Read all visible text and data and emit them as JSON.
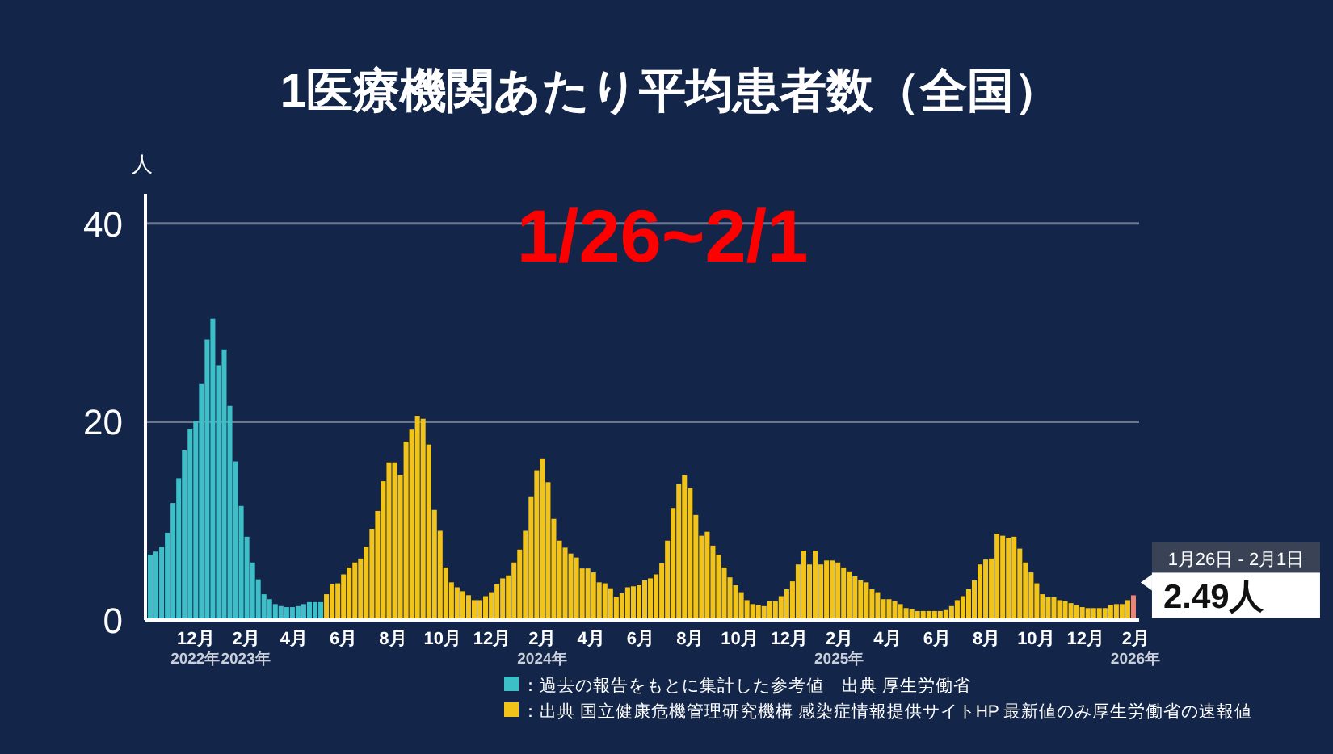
{
  "chart_data": {
    "type": "bar",
    "title": "1医療機関あたり平均患者数（全国）",
    "ylabel": "人",
    "series": [
      {
        "name": "：過去の報告をもとに集計した参考値　出典 厚生労働省",
        "color": "#3dbfc8",
        "x": [
          "2022-10-03",
          "2022-10-10",
          "2022-10-17",
          "2022-10-24",
          "2022-10-31",
          "2022-11-07",
          "2022-11-14",
          "2022-11-21",
          "2022-11-28",
          "2022-12-05",
          "2022-12-12",
          "2022-12-19",
          "2022-12-26",
          "2023-01-02",
          "2023-01-09",
          "2023-01-16",
          "2023-01-23",
          "2023-01-30",
          "2023-02-06",
          "2023-02-13",
          "2023-02-20",
          "2023-02-27",
          "2023-03-06",
          "2023-03-13",
          "2023-03-20",
          "2023-03-27",
          "2023-04-03",
          "2023-04-10",
          "2023-04-17",
          "2023-04-24",
          "2023-05-01"
        ],
        "values": [
          6.6,
          6.9,
          7.4,
          8.8,
          11.8,
          14.3,
          17.1,
          19.3,
          20.1,
          23.8,
          28.3,
          30.4,
          25.7,
          27.3,
          21.6,
          16.0,
          11.5,
          8.4,
          5.8,
          4.1,
          2.6,
          2.1,
          1.6,
          1.4,
          1.3,
          1.3,
          1.4,
          1.6,
          1.8,
          1.8,
          1.8
        ]
      },
      {
        "name": "：出典 国立健康危機管理研究機構 感染症情報提供サイトHP 最新値のみ厚生労働省の速報値",
        "color": "#f2c419",
        "x": [
          "2023-05-08",
          "2023-05-15",
          "2023-05-22",
          "2023-05-29",
          "2023-06-05",
          "2023-06-12",
          "2023-06-19",
          "2023-06-26",
          "2023-07-03",
          "2023-07-10",
          "2023-07-17",
          "2023-07-24",
          "2023-07-31",
          "2023-08-07",
          "2023-08-14",
          "2023-08-21",
          "2023-08-28",
          "2023-09-04",
          "2023-09-11",
          "2023-09-18",
          "2023-09-25",
          "2023-10-02",
          "2023-10-09",
          "2023-10-16",
          "2023-10-23",
          "2023-10-30",
          "2023-11-06",
          "2023-11-13",
          "2023-11-20",
          "2023-11-27",
          "2023-12-04",
          "2023-12-11",
          "2023-12-18",
          "2023-12-25",
          "2024-01-01",
          "2024-01-08",
          "2024-01-15",
          "2024-01-22",
          "2024-01-29",
          "2024-02-05",
          "2024-02-12",
          "2024-02-19",
          "2024-02-26",
          "2024-03-04",
          "2024-03-11",
          "2024-03-18",
          "2024-03-25",
          "2024-04-01",
          "2024-04-08",
          "2024-04-15",
          "2024-04-22",
          "2024-04-29",
          "2024-05-06",
          "2024-05-13",
          "2024-05-20",
          "2024-05-27",
          "2024-06-03",
          "2024-06-10",
          "2024-06-17",
          "2024-06-24",
          "2024-07-01",
          "2024-07-08",
          "2024-07-15",
          "2024-07-22",
          "2024-07-29",
          "2024-08-05",
          "2024-08-12",
          "2024-08-19",
          "2024-08-26",
          "2024-09-02",
          "2024-09-09",
          "2024-09-16",
          "2024-09-23",
          "2024-09-30",
          "2024-10-07",
          "2024-10-14",
          "2024-10-21",
          "2024-10-28",
          "2024-11-04",
          "2024-11-11",
          "2024-11-18",
          "2024-11-25",
          "2024-12-02",
          "2024-12-09",
          "2024-12-16",
          "2024-12-23",
          "2024-12-30",
          "2025-01-06",
          "2025-01-13",
          "2025-01-20",
          "2025-01-27",
          "2025-02-03",
          "2025-02-10",
          "2025-02-17",
          "2025-02-24",
          "2025-03-03",
          "2025-03-10",
          "2025-03-17",
          "2025-03-24",
          "2025-03-31",
          "2025-04-07",
          "2025-04-14",
          "2025-04-21",
          "2025-04-28",
          "2025-05-05",
          "2025-05-12",
          "2025-05-19",
          "2025-05-26",
          "2025-06-02",
          "2025-06-09",
          "2025-06-16",
          "2025-06-23",
          "2025-06-30",
          "2025-07-07",
          "2025-07-14",
          "2025-07-21",
          "2025-07-28",
          "2025-08-04",
          "2025-08-11",
          "2025-08-18",
          "2025-08-25",
          "2025-09-01",
          "2025-09-08",
          "2025-09-15",
          "2025-09-22",
          "2025-09-29",
          "2025-10-06",
          "2025-10-13",
          "2025-10-20",
          "2025-10-27",
          "2025-11-03",
          "2025-11-10",
          "2025-11-17",
          "2025-11-24",
          "2025-12-01",
          "2025-12-08",
          "2025-12-15",
          "2025-12-22",
          "2025-12-29",
          "2026-01-05",
          "2026-01-12",
          "2026-01-19"
        ],
        "values": [
          2.6,
          3.6,
          3.7,
          4.6,
          5.3,
          5.8,
          6.2,
          7.4,
          9.2,
          11.0,
          14.0,
          15.9,
          15.9,
          14.6,
          18.0,
          19.2,
          20.6,
          20.3,
          17.7,
          11.1,
          9.0,
          5.3,
          3.8,
          3.3,
          2.9,
          2.5,
          2.0,
          2.0,
          2.4,
          2.8,
          3.6,
          4.2,
          4.5,
          5.8,
          7.1,
          9.0,
          12.4,
          15.1,
          16.3,
          13.9,
          10.2,
          8.0,
          7.3,
          6.7,
          6.3,
          5.2,
          5.2,
          4.8,
          3.8,
          3.7,
          3.2,
          2.3,
          2.7,
          3.3,
          3.4,
          3.5,
          4.0,
          4.2,
          4.6,
          5.7,
          8.0,
          11.3,
          13.7,
          14.6,
          13.3,
          10.6,
          8.5,
          8.9,
          7.5,
          6.6,
          5.3,
          4.3,
          3.5,
          2.8,
          2.0,
          1.6,
          1.5,
          1.4,
          1.9,
          1.9,
          2.4,
          3.1,
          3.9,
          5.6,
          7.0,
          5.6,
          7.0,
          5.6,
          6.0,
          6.0,
          5.8,
          5.3,
          4.9,
          4.4,
          4.0,
          3.8,
          3.1,
          2.8,
          2.1,
          2.1,
          1.9,
          1.6,
          1.2,
          1.1,
          0.9,
          0.9,
          0.9,
          0.9,
          0.9,
          1.0,
          1.4,
          2.0,
          2.4,
          3.1,
          4.0,
          5.6,
          6.1,
          6.2,
          8.7,
          8.5,
          8.3,
          8.4,
          7.2,
          5.8,
          4.8,
          3.7,
          2.6,
          2.3,
          2.3,
          2.0,
          1.9,
          1.7,
          1.5,
          1.3,
          1.2,
          1.2,
          1.2,
          1.2,
          1.5,
          1.6,
          1.6,
          2.0
        ]
      },
      {
        "color": "#e8857d",
        "x": [
          "2026-01-26"
        ],
        "values": [
          2.49
        ]
      }
    ],
    "xlim": [
      "2022-09-30",
      "2026-02-05"
    ],
    "xticks": [
      {
        "value": "2022-12-01",
        "label": "12月\n2022年"
      },
      {
        "value": "2023-02-01",
        "label": "2月\n2023年"
      },
      {
        "value": "2023-04-01",
        "label": "4月"
      },
      {
        "value": "2023-06-01",
        "label": "6月"
      },
      {
        "value": "2023-08-01",
        "label": "8月"
      },
      {
        "value": "2023-10-01",
        "label": "10月"
      },
      {
        "value": "2023-12-01",
        "label": "12月"
      },
      {
        "value": "2024-02-01",
        "label": "2月\n2024年"
      },
      {
        "value": "2024-04-01",
        "label": "4月"
      },
      {
        "value": "2024-06-01",
        "label": "6月"
      },
      {
        "value": "2024-08-01",
        "label": "8月"
      },
      {
        "value": "2024-10-01",
        "label": "10月"
      },
      {
        "value": "2024-12-01",
        "label": "12月"
      },
      {
        "value": "2025-02-01",
        "label": "2月\n2025年"
      },
      {
        "value": "2025-04-01",
        "label": "4月"
      },
      {
        "value": "2025-06-01",
        "label": "6月"
      },
      {
        "value": "2025-08-01",
        "label": "8月"
      },
      {
        "value": "2025-10-01",
        "label": "10月"
      },
      {
        "value": "2025-12-01",
        "label": "12月"
      },
      {
        "value": "2026-02-01",
        "label": "2月\n2026年"
      }
    ],
    "ylim": [
      0,
      43
    ],
    "yticks": [
      0,
      20,
      40
    ],
    "grid": "y",
    "legend": "bottom",
    "annotations": [
      "1/26~2/1",
      "1月26日 - 2月1日",
      {
        "text": "2.49人",
        "x": "2026-01-26",
        "y": 2.49
      }
    ]
  }
}
